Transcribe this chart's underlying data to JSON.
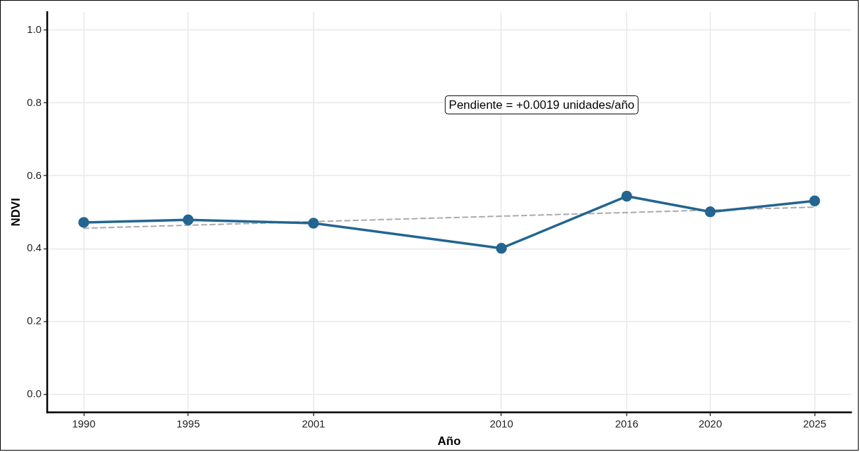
{
  "chart_data": {
    "type": "line",
    "xlabel": "Año",
    "ylabel": "NDVI",
    "x": [
      1990,
      1995,
      2001,
      2010,
      2016,
      2020,
      2025
    ],
    "series": [
      {
        "color": "#236590",
        "values": [
          0.472,
          0.479,
          0.47,
          0.401,
          0.544,
          0.501,
          0.531
        ],
        "marker": "circle",
        "line_style": "solid"
      },
      {
        "type": "line",
        "color": "#aaaaaa",
        "x": [
          1990,
          2025
        ],
        "values": [
          0.456,
          0.514
        ],
        "marker": "none",
        "line_style": "dashed"
      }
    ],
    "xlim": [
      1988.25,
      2026.75
    ],
    "xticks": [
      1990,
      1995,
      2001,
      2010,
      2016,
      2020,
      2025
    ],
    "ylim": [
      -0.05,
      1.05
    ],
    "yticks": [
      {
        "value": 0,
        "label": "0.0"
      },
      {
        "value": 0.2,
        "label": "0.2"
      },
      {
        "value": 0.4,
        "label": "0.4"
      },
      {
        "value": 0.6,
        "label": "0.6"
      },
      {
        "value": 0.8,
        "label": "0.8"
      },
      {
        "value": 1,
        "label": "1.0"
      }
    ],
    "grid": true,
    "legend": false,
    "annotations": [
      "Pendiente = +0.0019 unidades/año"
    ]
  }
}
